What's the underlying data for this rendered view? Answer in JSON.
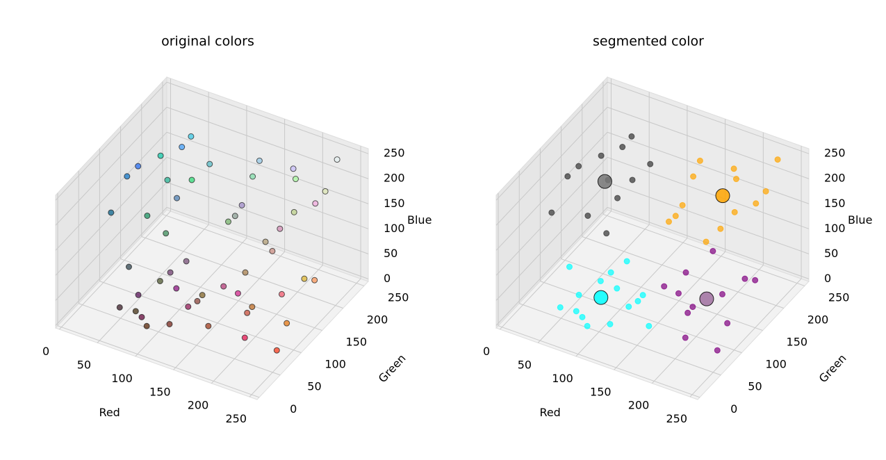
{
  "chart_data": [
    {
      "type": "scatter3d",
      "title": "original colors",
      "xlabel": "Red",
      "ylabel": "Green",
      "zlabel": "Blue",
      "point_color": "rgb",
      "x": [
        60,
        90,
        120,
        140,
        80,
        110,
        150,
        70,
        130,
        100,
        160,
        50,
        120,
        90,
        140,
        20,
        40,
        60,
        30,
        80,
        50,
        70,
        10,
        90,
        40,
        60,
        20,
        150,
        180,
        130,
        200,
        160,
        220,
        120,
        190,
        240,
        170,
        140,
        210,
        230,
        200,
        230,
        180,
        250,
        210,
        190,
        240,
        170,
        220,
        250,
        200,
        230
      ],
      "y": [
        30,
        20,
        40,
        70,
        90,
        60,
        30,
        50,
        100,
        10,
        60,
        70,
        80,
        40,
        20,
        120,
        180,
        200,
        150,
        130,
        220,
        160,
        100,
        190,
        110,
        140,
        200,
        200,
        160,
        220,
        190,
        140,
        230,
        180,
        210,
        170,
        250,
        160,
        140,
        240,
        80,
        120,
        60,
        150,
        40,
        110,
        90,
        130,
        180,
        60,
        140,
        20
      ],
      "z": [
        40,
        90,
        30,
        60,
        50,
        110,
        90,
        20,
        40,
        60,
        30,
        80,
        120,
        10,
        130,
        200,
        150,
        230,
        100,
        180,
        120,
        250,
        140,
        200,
        240,
        90,
        170,
        230,
        120,
        170,
        250,
        200,
        180,
        110,
        140,
        220,
        160,
        150,
        180,
        240,
        60,
        20,
        120,
        90,
        140,
        40,
        110,
        80,
        50,
        30,
        130,
        80
      ],
      "xlim": [
        -5,
        260
      ],
      "ylim": [
        -5,
        260
      ],
      "zlim": [
        -5,
        260
      ],
      "xticks": [
        0,
        50,
        100,
        150,
        200,
        250
      ],
      "yticks": [
        0,
        50,
        100,
        150,
        200,
        250
      ],
      "zticks": [
        0,
        50,
        100,
        150,
        200,
        250
      ]
    },
    {
      "type": "scatter3d",
      "title": "segmented color",
      "xlabel": "Red",
      "ylabel": "Green",
      "zlabel": "Blue",
      "series": [
        {
          "color": "#00ffff",
          "x": [
            60,
            90,
            120,
            140,
            80,
            110,
            150,
            70,
            130,
            100,
            160,
            50,
            120,
            90,
            140
          ],
          "y": [
            30,
            20,
            40,
            70,
            90,
            60,
            30,
            50,
            100,
            10,
            60,
            70,
            80,
            40,
            20
          ],
          "z": [
            40,
            90,
            30,
            60,
            50,
            110,
            90,
            20,
            40,
            60,
            30,
            80,
            120,
            10,
            130
          ]
        },
        {
          "color": "#333333",
          "x": [
            20,
            40,
            60,
            30,
            80,
            50,
            70,
            10,
            90,
            40,
            60,
            20
          ],
          "y": [
            120,
            180,
            200,
            150,
            130,
            220,
            160,
            100,
            190,
            110,
            140,
            200
          ],
          "z": [
            200,
            150,
            230,
            100,
            180,
            120,
            250,
            140,
            200,
            240,
            90,
            170
          ]
        },
        {
          "color": "#ffa500",
          "x": [
            150,
            180,
            130,
            200,
            160,
            220,
            120,
            190,
            240,
            170,
            140,
            210,
            230
          ],
          "y": [
            200,
            160,
            220,
            190,
            140,
            230,
            180,
            210,
            170,
            250,
            160,
            140,
            240
          ],
          "z": [
            230,
            120,
            170,
            250,
            200,
            180,
            110,
            140,
            220,
            160,
            150,
            180,
            240
          ]
        },
        {
          "color": "#800080",
          "x": [
            200,
            230,
            180,
            250,
            210,
            190,
            240,
            170,
            220,
            250,
            200,
            230
          ],
          "y": [
            80,
            120,
            60,
            150,
            40,
            110,
            90,
            130,
            180,
            60,
            140,
            20
          ],
          "z": [
            60,
            20,
            120,
            90,
            140,
            40,
            110,
            80,
            50,
            30,
            130,
            80
          ]
        }
      ],
      "centroids": {
        "colors": [
          "#00ffff",
          "#777777",
          "#ffa500",
          "#a070a0"
        ],
        "x": [
          103,
          48,
          182,
          215
        ],
        "y": [
          49,
          158,
          196,
          98
        ],
        "z": [
          66,
          171,
          181,
          80
        ]
      },
      "xlim": [
        -5,
        260
      ],
      "ylim": [
        -5,
        260
      ],
      "zlim": [
        -5,
        260
      ],
      "xticks": [
        0,
        50,
        100,
        150,
        200,
        250
      ],
      "yticks": [
        0,
        50,
        100,
        150,
        200,
        250
      ],
      "zticks": [
        0,
        50,
        100,
        150,
        200,
        250
      ]
    }
  ]
}
